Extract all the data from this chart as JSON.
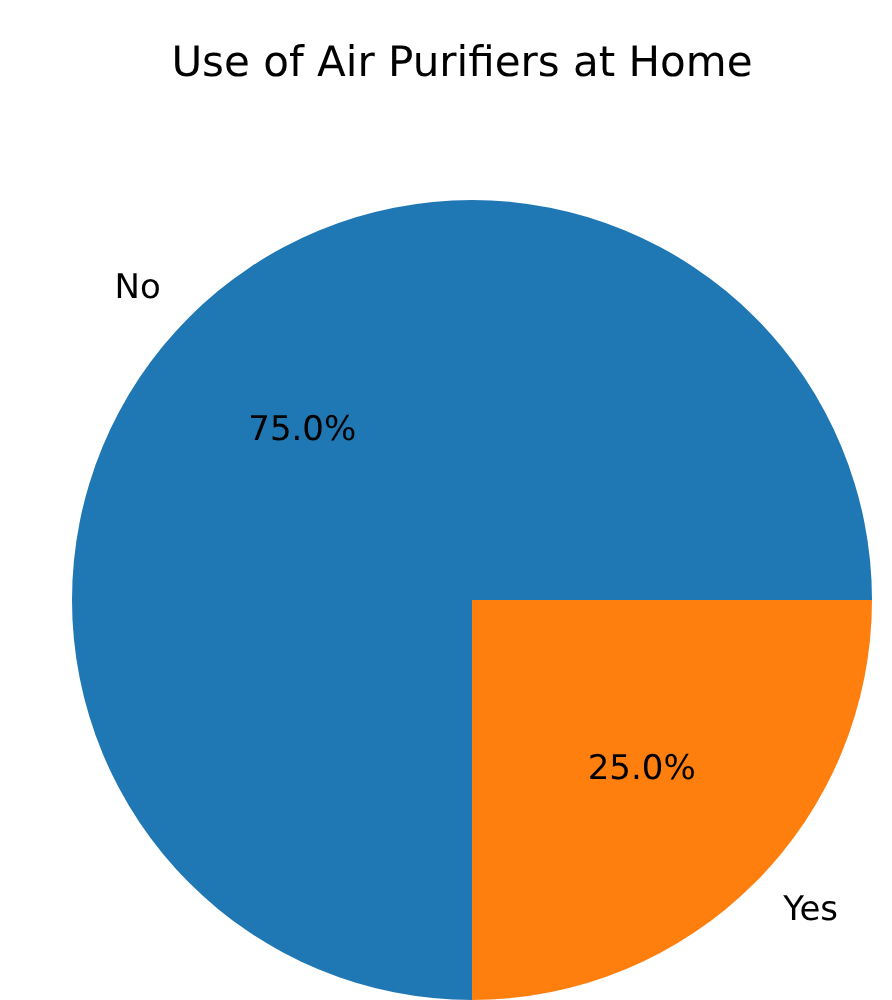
{
  "chart_data": {
    "type": "pie",
    "title": "Use of Air Purifiers at Home",
    "categories": [
      "No",
      "Yes"
    ],
    "values": [
      75,
      25
    ],
    "colors": [
      "#1f77b4",
      "#ff7f0e"
    ],
    "value_labels": [
      "75.0%",
      "25.0%"
    ]
  }
}
